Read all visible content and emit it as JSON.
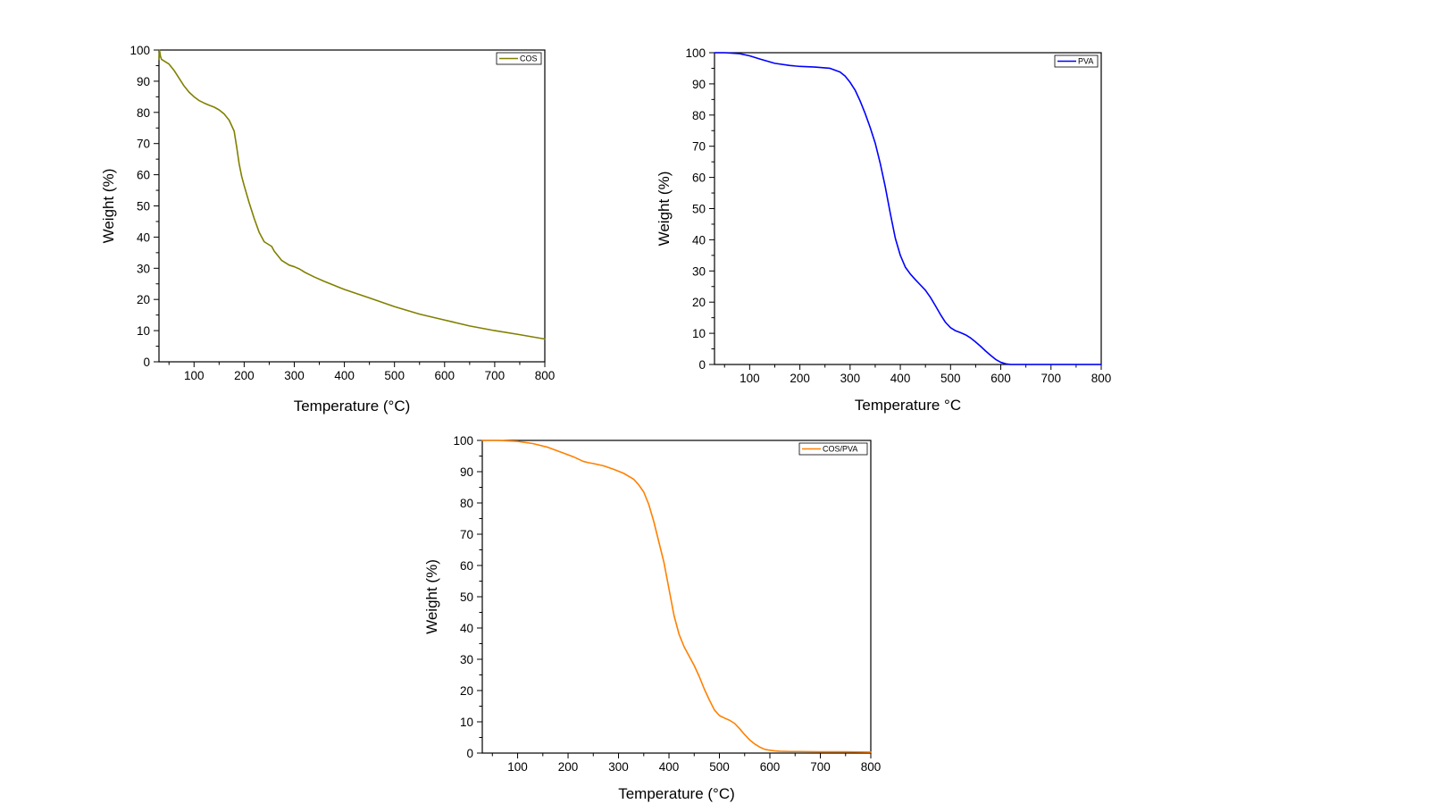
{
  "chart_data": [
    {
      "type": "line",
      "xlabel": "Temperature (°C)",
      "ylabel": "Weight (%)",
      "xlim": [
        30,
        800
      ],
      "ylim": [
        0,
        100
      ],
      "xticks": [
        100,
        200,
        300,
        400,
        500,
        600,
        700,
        800
      ],
      "yticks": [
        0,
        10,
        20,
        30,
        40,
        50,
        60,
        70,
        80,
        90,
        100
      ],
      "grid": false,
      "legend_position": "top-right",
      "series": [
        {
          "name": "COS",
          "color": "#808000",
          "x": [
            30,
            31,
            32,
            33,
            35,
            40,
            50,
            60,
            70,
            80,
            90,
            100,
            110,
            120,
            130,
            140,
            150,
            160,
            170,
            180,
            185,
            190,
            195,
            200,
            210,
            220,
            230,
            240,
            250,
            255,
            260,
            265,
            270,
            275,
            280,
            285,
            290,
            300,
            310,
            315,
            320,
            330,
            340,
            360,
            380,
            400,
            450,
            500,
            550,
            600,
            650,
            700,
            750,
            800
          ],
          "y": [
            97,
            100,
            99,
            98,
            97,
            96.5,
            95.5,
            93.5,
            91,
            88.5,
            86.5,
            85,
            83.8,
            83,
            82.3,
            81.7,
            80.8,
            79.5,
            77.5,
            74,
            69,
            63.5,
            59.5,
            56.5,
            51,
            46,
            41.5,
            38.5,
            37.5,
            37,
            35.5,
            34.5,
            33.5,
            32.5,
            32,
            31.5,
            31,
            30.5,
            29.8,
            29.3,
            28.8,
            28,
            27.2,
            25.8,
            24.5,
            23.2,
            20.5,
            17.7,
            15.3,
            13.4,
            11.5,
            10,
            8.7,
            7.3
          ]
        }
      ]
    },
    {
      "type": "line",
      "xlabel": "Temperature °C",
      "ylabel": "Weight (%)",
      "xlim": [
        30,
        800
      ],
      "ylim": [
        0,
        100
      ],
      "xticks": [
        100,
        200,
        300,
        400,
        500,
        600,
        700,
        800
      ],
      "yticks": [
        0,
        10,
        20,
        30,
        40,
        50,
        60,
        70,
        80,
        90,
        100
      ],
      "grid": false,
      "legend_position": "top-right",
      "series": [
        {
          "name": "PVA",
          "color": "#0000ff",
          "x": [
            30,
            50,
            80,
            100,
            120,
            150,
            180,
            200,
            230,
            260,
            280,
            290,
            300,
            310,
            320,
            330,
            340,
            350,
            360,
            370,
            380,
            390,
            400,
            410,
            420,
            430,
            440,
            450,
            460,
            470,
            480,
            490,
            500,
            510,
            520,
            530,
            540,
            550,
            560,
            570,
            580,
            590,
            600,
            610,
            620,
            640,
            660,
            700,
            750,
            800
          ],
          "y": [
            100,
            100,
            99.7,
            99,
            98,
            96.6,
            95.9,
            95.6,
            95.4,
            95,
            93.8,
            92.5,
            90.5,
            88,
            84.5,
            80.5,
            76,
            71,
            64.5,
            57,
            48.5,
            40.5,
            35,
            31.2,
            29,
            27.2,
            25.5,
            23.8,
            21.5,
            18.8,
            16,
            13.5,
            11.8,
            10.8,
            10.2,
            9.5,
            8.5,
            7.2,
            5.8,
            4.3,
            2.9,
            1.6,
            0.7,
            0.2,
            0,
            0,
            0,
            0,
            0,
            0
          ]
        }
      ]
    },
    {
      "type": "line",
      "xlabel": "Temperature (°C)",
      "ylabel": "Weight (%)",
      "xlim": [
        30,
        800
      ],
      "ylim": [
        0,
        100
      ],
      "xticks": [
        100,
        200,
        300,
        400,
        500,
        600,
        700,
        800
      ],
      "yticks": [
        0,
        10,
        20,
        30,
        40,
        50,
        60,
        70,
        80,
        90,
        100
      ],
      "grid": false,
      "legend_position": "top-right",
      "series": [
        {
          "name": "COS/PVA",
          "color": "#ff8000",
          "x": [
            30,
            60,
            100,
            130,
            160,
            190,
            210,
            230,
            240,
            250,
            270,
            290,
            310,
            330,
            340,
            350,
            360,
            370,
            380,
            390,
            400,
            410,
            420,
            430,
            440,
            450,
            460,
            470,
            480,
            490,
            500,
            510,
            520,
            530,
            540,
            550,
            560,
            570,
            580,
            590,
            600,
            610,
            620,
            640,
            660,
            700,
            750,
            800
          ],
          "y": [
            100,
            100,
            99.7,
            99,
            97.8,
            96,
            94.8,
            93.3,
            92.9,
            92.6,
            91.9,
            90.8,
            89.5,
            87.6,
            85.8,
            83.5,
            79.5,
            74,
            67.5,
            61,
            52.5,
            44,
            38,
            34,
            31,
            28,
            24.5,
            20.5,
            17,
            13.8,
            12,
            11.2,
            10.5,
            9.5,
            7.8,
            5.9,
            4.2,
            2.9,
            1.9,
            1.2,
            0.9,
            0.7,
            0.6,
            0.5,
            0.5,
            0.4,
            0.4,
            0.3
          ]
        }
      ]
    }
  ]
}
